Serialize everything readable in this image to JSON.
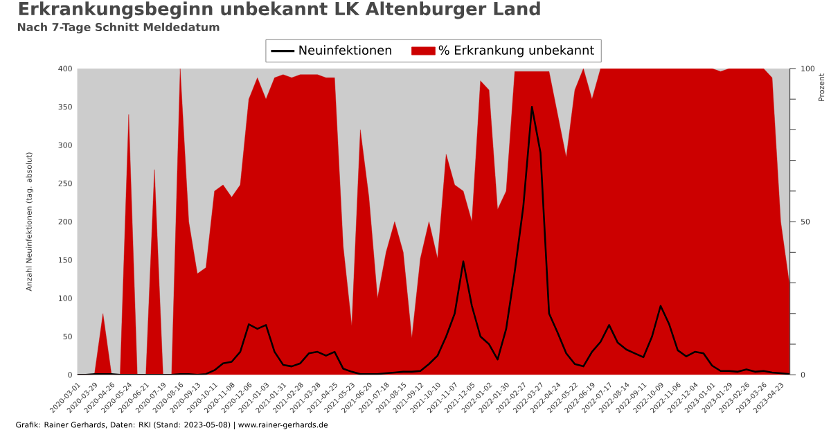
{
  "chart_data": {
    "type": "line",
    "title": "Erkrankungsbeginn unbekannt LK Altenburger Land",
    "subtitle": "Nach 7-Tage Schnitt Meldedatum",
    "ylabel": "Anzahl Neuinfektionen (tag. absolut)",
    "y2label": "Prozent",
    "annotations": [
      "Grafik: Rainer Gerhards, Daten: RKI (Stand: 2023-05-08) | www.rainer-gerhards.de"
    ],
    "legend": "top",
    "xlim": [
      "2020-03-01",
      "2023-05-08"
    ],
    "xticks": [
      "2020-03-01",
      "2020-03-29",
      "2020-04-26",
      "2020-05-24",
      "2020-06-21",
      "2020-07-19",
      "2020-08-16",
      "2020-09-13",
      "2020-10-11",
      "2020-11-08",
      "2020-12-06",
      "2021-01-03",
      "2021-01-31",
      "2021-02-28",
      "2021-03-28",
      "2021-04-25",
      "2021-05-23",
      "2021-06-20",
      "2021-07-18",
      "2021-08-15",
      "2021-09-12",
      "2021-10-10",
      "2021-11-07",
      "2021-12-05",
      "2022-01-02",
      "2022-01-30",
      "2022-02-27",
      "2022-03-27",
      "2022-04-24",
      "2022-05-22",
      "2022-06-19",
      "2022-07-17",
      "2022-08-14",
      "2022-09-11",
      "2022-10-09",
      "2022-11-06",
      "2022-12-04",
      "2023-01-01",
      "2023-01-29",
      "2023-02-26",
      "2023-03-26",
      "2023-04-23"
    ],
    "ylim": [
      0,
      400
    ],
    "yticks": [
      0,
      50,
      100,
      150,
      200,
      250,
      300,
      350,
      400
    ],
    "y2lim": [
      0,
      100
    ],
    "y2ticks": [
      0,
      {
        "value": 10,
        "label": null
      },
      {
        "value": 20,
        "label": null
      },
      {
        "value": 30,
        "label": null
      },
      {
        "value": 40,
        "label": null
      },
      50,
      {
        "value": 60,
        "label": null
      },
      {
        "value": 70,
        "label": null
      },
      {
        "value": 80,
        "label": null
      },
      {
        "value": 90,
        "label": null
      },
      100
    ],
    "x": [
      "2020-03-01",
      "2020-03-15",
      "2020-03-29",
      "2020-04-12",
      "2020-04-26",
      "2020-05-10",
      "2020-05-24",
      "2020-06-07",
      "2020-06-21",
      "2020-07-05",
      "2020-07-19",
      "2020-08-02",
      "2020-08-16",
      "2020-08-30",
      "2020-09-13",
      "2020-09-27",
      "2020-10-11",
      "2020-10-25",
      "2020-11-08",
      "2020-11-22",
      "2020-12-06",
      "2020-12-20",
      "2021-01-03",
      "2021-01-17",
      "2021-01-31",
      "2021-02-14",
      "2021-02-28",
      "2021-03-14",
      "2021-03-28",
      "2021-04-11",
      "2021-04-25",
      "2021-05-09",
      "2021-05-23",
      "2021-06-06",
      "2021-06-20",
      "2021-07-04",
      "2021-07-18",
      "2021-08-01",
      "2021-08-15",
      "2021-08-29",
      "2021-09-12",
      "2021-09-26",
      "2021-10-10",
      "2021-10-24",
      "2021-11-07",
      "2021-11-21",
      "2021-12-05",
      "2021-12-19",
      "2022-01-02",
      "2022-01-16",
      "2022-01-30",
      "2022-02-13",
      "2022-02-27",
      "2022-03-13",
      "2022-03-27",
      "2022-04-10",
      "2022-04-24",
      "2022-05-08",
      "2022-05-22",
      "2022-06-05",
      "2022-06-19",
      "2022-07-03",
      "2022-07-17",
      "2022-07-31",
      "2022-08-14",
      "2022-08-28",
      "2022-09-11",
      "2022-09-25",
      "2022-10-09",
      "2022-10-23",
      "2022-11-06",
      "2022-11-20",
      "2022-12-04",
      "2022-12-18",
      "2023-01-01",
      "2023-01-15",
      "2023-01-29",
      "2023-02-12",
      "2023-02-26",
      "2023-03-12",
      "2023-03-26",
      "2023-04-09",
      "2023-04-23",
      "2023-05-07"
    ],
    "series": [
      {
        "name": "Neuinfektionen",
        "color": "#000000",
        "values": [
          0,
          0,
          1,
          1,
          1,
          0,
          0,
          0,
          0,
          0,
          0,
          0,
          1,
          1,
          0,
          1,
          6,
          15,
          17,
          30,
          66,
          60,
          65,
          30,
          13,
          11,
          15,
          28,
          30,
          25,
          30,
          8,
          4,
          1,
          1,
          1,
          2,
          3,
          4,
          4,
          5,
          14,
          25,
          50,
          80,
          148,
          90,
          50,
          40,
          20,
          60,
          135,
          220,
          350,
          290,
          80,
          55,
          28,
          14,
          11,
          30,
          43,
          65,
          42,
          33,
          28,
          23,
          50,
          90,
          66,
          32,
          24,
          30,
          28,
          12,
          5,
          5,
          4,
          7,
          4,
          5,
          3,
          2,
          1
        ]
      },
      {
        "name": "% Erkrankung unbekannt",
        "type": "area",
        "axis": "y2",
        "color": "#cc0000",
        "values": [
          0,
          0,
          0,
          20,
          0,
          0,
          85,
          0,
          0,
          67,
          0,
          0,
          100,
          50,
          33,
          35,
          60,
          62,
          58,
          62,
          90,
          97,
          90,
          97,
          98,
          97,
          98,
          98,
          98,
          97,
          97,
          42,
          16,
          80,
          58,
          25,
          40,
          50,
          40,
          12,
          38,
          50,
          38,
          72,
          62,
          60,
          50,
          96,
          93,
          54,
          60,
          99,
          99,
          99,
          99,
          99,
          85,
          71,
          93,
          100,
          90,
          100,
          100,
          100,
          100,
          100,
          100,
          100,
          100,
          100,
          100,
          100,
          100,
          100,
          100,
          99,
          100,
          100,
          100,
          100,
          100,
          97,
          50,
          30
        ]
      }
    ]
  }
}
